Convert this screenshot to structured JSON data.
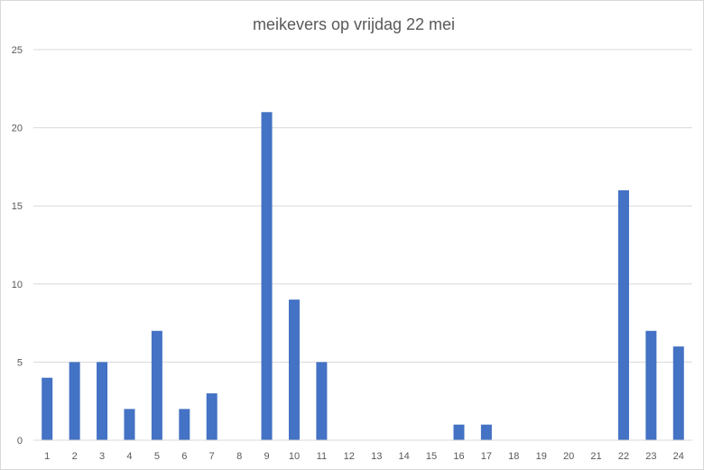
{
  "chart_data": {
    "type": "bar",
    "title": "meikevers op vrijdag 22 mei",
    "xlabel": "",
    "ylabel": "",
    "categories": [
      "1",
      "2",
      "3",
      "4",
      "5",
      "6",
      "7",
      "8",
      "9",
      "10",
      "11",
      "12",
      "13",
      "14",
      "15",
      "16",
      "17",
      "18",
      "19",
      "20",
      "21",
      "22",
      "23",
      "24"
    ],
    "series": [
      {
        "values": [
          4,
          5,
          5,
          2,
          7,
          2,
          3,
          0,
          21,
          9,
          5,
          0,
          0,
          0,
          0,
          1,
          1,
          0,
          0,
          0,
          0,
          16,
          7,
          6
        ],
        "color": "#4472c4"
      }
    ],
    "ylim": [
      0,
      25
    ],
    "yticks": [
      "0",
      "5",
      "10",
      "15",
      "20",
      "25"
    ],
    "grid": "horizontal",
    "legend": "none",
    "colors": {
      "bar": "#4472c4",
      "grid": "#d9d9d9",
      "text": "#595959"
    }
  }
}
